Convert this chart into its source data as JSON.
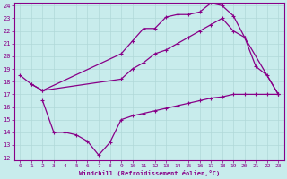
{
  "xlabel": "Windchill (Refroidissement éolien,°C)",
  "bg_color": "#c8ecec",
  "grid_color": "#b0d8d8",
  "line_color": "#880088",
  "xlim": [
    -0.5,
    23.5
  ],
  "ylim": [
    12,
    24
  ],
  "xticks": [
    0,
    1,
    2,
    3,
    4,
    5,
    6,
    7,
    8,
    9,
    10,
    11,
    12,
    13,
    14,
    15,
    16,
    17,
    18,
    19,
    20,
    21,
    22,
    23
  ],
  "yticks": [
    12,
    13,
    14,
    15,
    16,
    17,
    18,
    19,
    20,
    21,
    22,
    23,
    24
  ],
  "line1_x": [
    0,
    1,
    2,
    9,
    10,
    11,
    12,
    13,
    14,
    15,
    16,
    17,
    18,
    19,
    20,
    21,
    22,
    23
  ],
  "line1_y": [
    18.5,
    17.8,
    17.3,
    20.2,
    21.2,
    22.2,
    22.2,
    23.1,
    23.3,
    23.3,
    23.5,
    24.2,
    24.0,
    23.2,
    21.5,
    19.2,
    18.5,
    17.0
  ],
  "line2_x": [
    1,
    2,
    9,
    10,
    11,
    12,
    13,
    14,
    15,
    16,
    17,
    18,
    19,
    20,
    23
  ],
  "line2_y": [
    17.8,
    17.3,
    18.2,
    19.0,
    19.5,
    20.2,
    20.5,
    21.0,
    21.5,
    22.0,
    22.5,
    23.0,
    22.0,
    21.5,
    17.0
  ],
  "line3_x": [
    2,
    3,
    4,
    5,
    6,
    7,
    8,
    9,
    10,
    11,
    12,
    13,
    14,
    15,
    16,
    17,
    18,
    19,
    20,
    21,
    22,
    23
  ],
  "line3_y": [
    16.5,
    14.0,
    14.0,
    13.8,
    13.3,
    12.2,
    13.2,
    15.0,
    15.3,
    15.5,
    15.7,
    15.9,
    16.1,
    16.3,
    16.5,
    16.7,
    16.8,
    17.0,
    17.0,
    17.0,
    17.0,
    17.0
  ]
}
